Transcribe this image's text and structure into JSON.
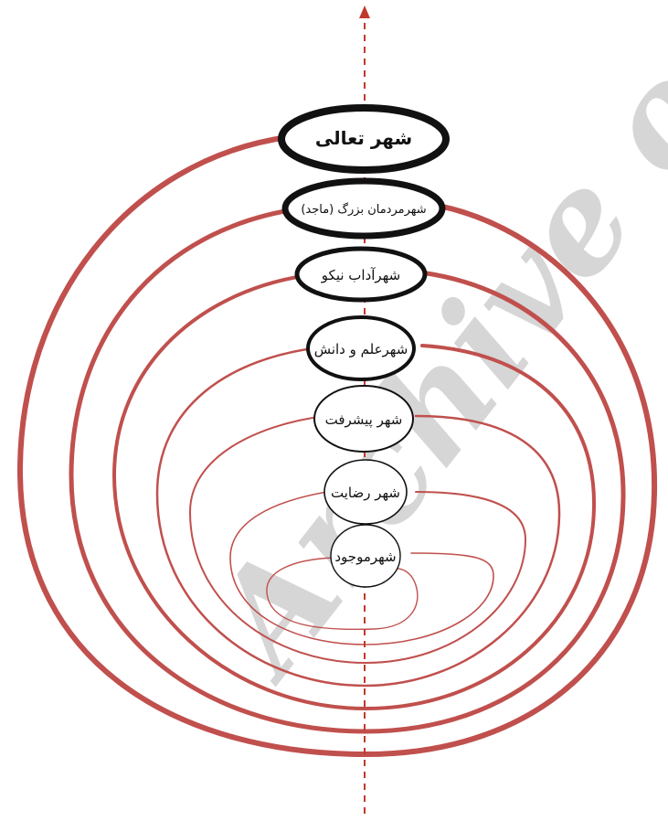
{
  "watermark": {
    "text": "Archive of"
  },
  "axis": {
    "color": "#c0392b"
  },
  "spiral": {
    "color": "#c0504d"
  },
  "nodes": [
    {
      "label": "شهر تعالی"
    },
    {
      "label": "شهرمردمان بزرگ (ماجد)"
    },
    {
      "label": "شهرآداب نیکو"
    },
    {
      "label": "شهرعلم و دانش"
    },
    {
      "label": "شهر پیشرفت"
    },
    {
      "label": "شهر رضایت"
    },
    {
      "label": "شهرموجود"
    }
  ]
}
